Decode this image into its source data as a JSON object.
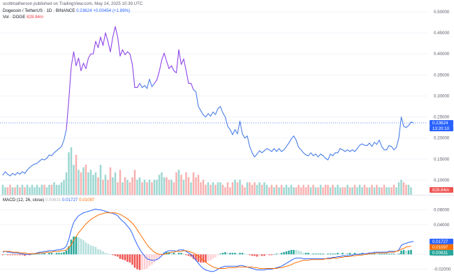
{
  "header": {
    "publisher": "scottmatherson published on TradingView.com, May 14, 2025 10:39 UTC",
    "symbol": "Dogecoin / TetherUS · 1D · BINANCE",
    "price": "0.23624",
    "change": "+0.00454 (+1.89%)",
    "vol_label": "Vol · DOGE",
    "vol_value": "828.84m",
    "macd_label": "MACD (12, 26, close)",
    "macd_hist": "0.00631",
    "macd_line": "0.01727",
    "macd_signal": "0.01097"
  },
  "colors": {
    "up": "#26a69a",
    "down": "#ef5350",
    "line": "#4a7ee8",
    "spike": "#8e44e8",
    "macd": "#2962ff",
    "signal": "#ff6d00",
    "grid": "#f0f3fa"
  },
  "price_axis": {
    "ticks": [
      "0.50000",
      "0.45000",
      "0.40000",
      "0.35000",
      "0.30000",
      "0.25000",
      "0.20000",
      "0.15000",
      "0.10000"
    ],
    "last_price_tag": "0.23624",
    "last_time_tag": "13:20:10",
    "volume_tag": "828.84m"
  },
  "macd_axis": {
    "ticks": [
      "0.06000",
      "0.04000",
      "0.00000",
      "-0.02000"
    ],
    "tags": [
      "0.01727",
      "0.01097",
      "0.00631"
    ]
  },
  "chart_data": [
    {
      "type": "line",
      "title": "Dogecoin / TetherUS · 1D · BINANCE",
      "x_unit": "daily bars",
      "ylim": [
        0.08,
        0.5
      ],
      "series": [
        {
          "name": "Dogecoin / TetherUS",
          "values": [
            0.112,
            0.12,
            0.114,
            0.11,
            0.116,
            0.112,
            0.118,
            0.114,
            0.12,
            0.116,
            0.124,
            0.13,
            0.135,
            0.138,
            0.14,
            0.145,
            0.15,
            0.148,
            0.152,
            0.16,
            0.158,
            0.165,
            0.17,
            0.175,
            0.18,
            0.195,
            0.22,
            0.29,
            0.37,
            0.405,
            0.372,
            0.39,
            0.36,
            0.378,
            0.365,
            0.39,
            0.4,
            0.4,
            0.43,
            0.415,
            0.44,
            0.42,
            0.45,
            0.43,
            0.405,
            0.44,
            0.465,
            0.44,
            0.395,
            0.41,
            0.398,
            0.405,
            0.4,
            0.375,
            0.32,
            0.32,
            0.33,
            0.32,
            0.325,
            0.318,
            0.34,
            0.322,
            0.33,
            0.338,
            0.358,
            0.385,
            0.402,
            0.383,
            0.365,
            0.372,
            0.36,
            0.355,
            0.41,
            0.375,
            0.388,
            0.36,
            0.33,
            0.33,
            0.315,
            0.31,
            0.275,
            0.265,
            0.255,
            0.25,
            0.258,
            0.252,
            0.262,
            0.256,
            0.27,
            0.275,
            0.26,
            0.25,
            0.228,
            0.22,
            0.208,
            0.22,
            0.21,
            0.24,
            0.21,
            0.2,
            0.205,
            0.18,
            0.165,
            0.155,
            0.162,
            0.17,
            0.165,
            0.17,
            0.175,
            0.172,
            0.168,
            0.175,
            0.168,
            0.175,
            0.168,
            0.172,
            0.18,
            0.188,
            0.198,
            0.205,
            0.195,
            0.178,
            0.172,
            0.165,
            0.16,
            0.158,
            0.165,
            0.158,
            0.162,
            0.155,
            0.162,
            0.158,
            0.152,
            0.148,
            0.162,
            0.158,
            0.165,
            0.165,
            0.175,
            0.172,
            0.168,
            0.172,
            0.168,
            0.172,
            0.168,
            0.175,
            0.183,
            0.186,
            0.183,
            0.182,
            0.188,
            0.18,
            0.19,
            0.185,
            0.195,
            0.18,
            0.172,
            0.172,
            0.182,
            0.18,
            0.172,
            0.178,
            0.2,
            0.25,
            0.228,
            0.225,
            0.23,
            0.238,
            0.236
          ]
        }
      ],
      "volume": {
        "name": "Vol · DOGE",
        "values": [
          4,
          3,
          3,
          4,
          3,
          3,
          4,
          3,
          4,
          3,
          4,
          3,
          4,
          3,
          4,
          3,
          4,
          4,
          3,
          4,
          4,
          5,
          4,
          4,
          5,
          6,
          9,
          17,
          19,
          12,
          16,
          10,
          9,
          11,
          12,
          9,
          10,
          8,
          9,
          7,
          12,
          6,
          8,
          6,
          11,
          7,
          9,
          5,
          10,
          5,
          7,
          6,
          5,
          7,
          10,
          6,
          7,
          5,
          6,
          5,
          6,
          5,
          6,
          6,
          8,
          9,
          7,
          7,
          6,
          6,
          5,
          9,
          10,
          8,
          6,
          9,
          7,
          5,
          9,
          7,
          8,
          5,
          6,
          4,
          5,
          4,
          5,
          4,
          5,
          5,
          4,
          3,
          5,
          3,
          5,
          6,
          5,
          6,
          4,
          3,
          5,
          5,
          4,
          5,
          4,
          5,
          4,
          5,
          4,
          3,
          4,
          3,
          4,
          3,
          4,
          3,
          4,
          3,
          4,
          3,
          3,
          4,
          3,
          4,
          3,
          4,
          3,
          4,
          3,
          3,
          4,
          3,
          4,
          4,
          3,
          4,
          3,
          4,
          3,
          3,
          3,
          4,
          3,
          3,
          4,
          3,
          4,
          3,
          4,
          3,
          3,
          4,
          3,
          4,
          3,
          3,
          4,
          3,
          3,
          3,
          4,
          3,
          5,
          6,
          5,
          4,
          4,
          3
        ]
      }
    },
    {
      "type": "line",
      "title": "MACD (12, 26, close)",
      "ylim": [
        -0.027,
        0.068
      ],
      "series": [
        {
          "name": "MACD",
          "values": [
            0.003,
            0.004,
            0.003,
            0.003,
            0.002,
            0.002,
            0.002,
            0.001,
            0.001,
            0.0,
            0.0,
            0.0,
            0.001,
            0.001,
            0.002,
            0.003,
            0.003,
            0.004,
            0.004,
            0.005,
            0.005,
            0.005,
            0.006,
            0.006,
            0.007,
            0.008,
            0.011,
            0.02,
            0.033,
            0.043,
            0.048,
            0.052,
            0.054,
            0.056,
            0.057,
            0.058,
            0.059,
            0.06,
            0.061,
            0.06,
            0.06,
            0.059,
            0.058,
            0.057,
            0.056,
            0.055,
            0.054,
            0.052,
            0.048,
            0.045,
            0.042,
            0.038,
            0.034,
            0.028,
            0.02,
            0.013,
            0.007,
            0.002,
            -0.002,
            -0.006,
            -0.007,
            -0.008,
            -0.008,
            -0.007,
            -0.005,
            -0.002,
            0.002,
            0.004,
            0.005,
            0.005,
            0.005,
            0.004,
            0.006,
            0.006,
            0.006,
            0.004,
            0.002,
            0.0,
            -0.004,
            -0.008,
            -0.012,
            -0.016,
            -0.019,
            -0.021,
            -0.022,
            -0.023,
            -0.023,
            -0.022,
            -0.02,
            -0.018,
            -0.017,
            -0.016,
            -0.016,
            -0.016,
            -0.016,
            -0.016,
            -0.016,
            -0.015,
            -0.015,
            -0.016,
            -0.017,
            -0.018,
            -0.019,
            -0.02,
            -0.021,
            -0.021,
            -0.021,
            -0.021,
            -0.02,
            -0.02,
            -0.02,
            -0.019,
            -0.018,
            -0.017,
            -0.016,
            -0.014,
            -0.012,
            -0.01,
            -0.008,
            -0.006,
            -0.005,
            -0.005,
            -0.005,
            -0.006,
            -0.006,
            -0.006,
            -0.006,
            -0.006,
            -0.006,
            -0.006,
            -0.006,
            -0.006,
            -0.006,
            -0.005,
            -0.005,
            -0.004,
            -0.004,
            -0.003,
            -0.003,
            -0.002,
            -0.002,
            -0.002,
            -0.001,
            -0.001,
            0.0,
            0.0,
            0.0,
            0.001,
            0.001,
            0.001,
            0.002,
            0.002,
            0.003,
            0.003,
            0.003,
            0.003,
            0.003,
            0.003,
            0.004,
            0.004,
            0.004,
            0.004,
            0.006,
            0.012,
            0.014,
            0.015,
            0.016,
            0.017,
            0.0173
          ]
        },
        {
          "name": "Signal",
          "values": [
            0.004,
            0.004,
            0.004,
            0.004,
            0.003,
            0.003,
            0.003,
            0.002,
            0.002,
            0.002,
            0.001,
            0.001,
            0.001,
            0.001,
            0.001,
            0.002,
            0.002,
            0.002,
            0.003,
            0.003,
            0.003,
            0.004,
            0.004,
            0.004,
            0.005,
            0.005,
            0.006,
            0.009,
            0.013,
            0.019,
            0.024,
            0.029,
            0.033,
            0.037,
            0.041,
            0.044,
            0.047,
            0.049,
            0.051,
            0.053,
            0.054,
            0.055,
            0.056,
            0.056,
            0.056,
            0.056,
            0.056,
            0.055,
            0.054,
            0.052,
            0.05,
            0.048,
            0.045,
            0.042,
            0.038,
            0.033,
            0.028,
            0.023,
            0.018,
            0.013,
            0.009,
            0.006,
            0.003,
            0.001,
            0.0,
            0.0,
            0.0,
            0.001,
            0.002,
            0.003,
            0.003,
            0.004,
            0.004,
            0.004,
            0.005,
            0.005,
            0.004,
            0.003,
            0.002,
            0.0,
            -0.002,
            -0.005,
            -0.008,
            -0.01,
            -0.013,
            -0.015,
            -0.017,
            -0.018,
            -0.019,
            -0.019,
            -0.019,
            -0.019,
            -0.018,
            -0.018,
            -0.018,
            -0.018,
            -0.017,
            -0.017,
            -0.017,
            -0.017,
            -0.017,
            -0.017,
            -0.017,
            -0.018,
            -0.018,
            -0.019,
            -0.019,
            -0.019,
            -0.019,
            -0.019,
            -0.019,
            -0.019,
            -0.019,
            -0.018,
            -0.018,
            -0.017,
            -0.016,
            -0.015,
            -0.014,
            -0.012,
            -0.011,
            -0.01,
            -0.009,
            -0.008,
            -0.008,
            -0.008,
            -0.007,
            -0.007,
            -0.007,
            -0.007,
            -0.007,
            -0.007,
            -0.006,
            -0.006,
            -0.006,
            -0.005,
            -0.005,
            -0.005,
            -0.004,
            -0.004,
            -0.003,
            -0.003,
            -0.003,
            -0.002,
            -0.002,
            -0.001,
            -0.001,
            -0.001,
            0.0,
            0.0,
            0.001,
            0.001,
            0.001,
            0.002,
            0.002,
            0.002,
            0.002,
            0.002,
            0.003,
            0.003,
            0.003,
            0.004,
            0.005,
            0.007,
            0.008,
            0.01,
            0.0105,
            0.011
          ]
        }
      ]
    }
  ]
}
